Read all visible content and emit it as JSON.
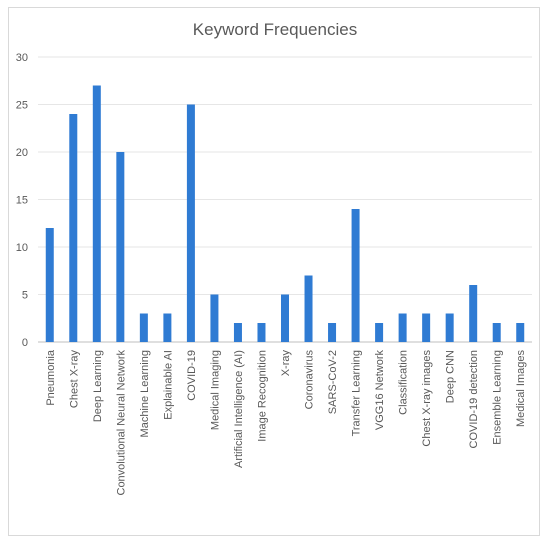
{
  "chart_data": {
    "type": "bar",
    "title": "Keyword Frequencies",
    "xlabel": "",
    "ylabel": "",
    "ylim": [
      0,
      30
    ],
    "yticks": [
      0,
      5,
      10,
      15,
      20,
      25,
      30
    ],
    "grid": true,
    "legend": "none",
    "bar_color": "#2f7bd3",
    "categories": [
      "Pneumonia",
      "Chest X-ray",
      "Deep Learning",
      "Convolutional Neural Network",
      "Machine Learning",
      "Explainable AI",
      "COVID-19",
      "Medical Imaging",
      "Artificial Intelligence (AI)",
      "Image Recognition",
      "X-ray",
      "Coronavirus",
      "SARS-CoV-2",
      "Transfer Learning",
      "VGG16 Network",
      "Classification",
      "Chest X-ray images",
      "Deep CNN",
      "COVID-19 detection",
      "Ensemble Learning",
      "Medical Images"
    ],
    "values": [
      12,
      24,
      27,
      20,
      3,
      3,
      25,
      5,
      2,
      2,
      5,
      7,
      2,
      14,
      2,
      3,
      3,
      3,
      6,
      2,
      2
    ]
  }
}
